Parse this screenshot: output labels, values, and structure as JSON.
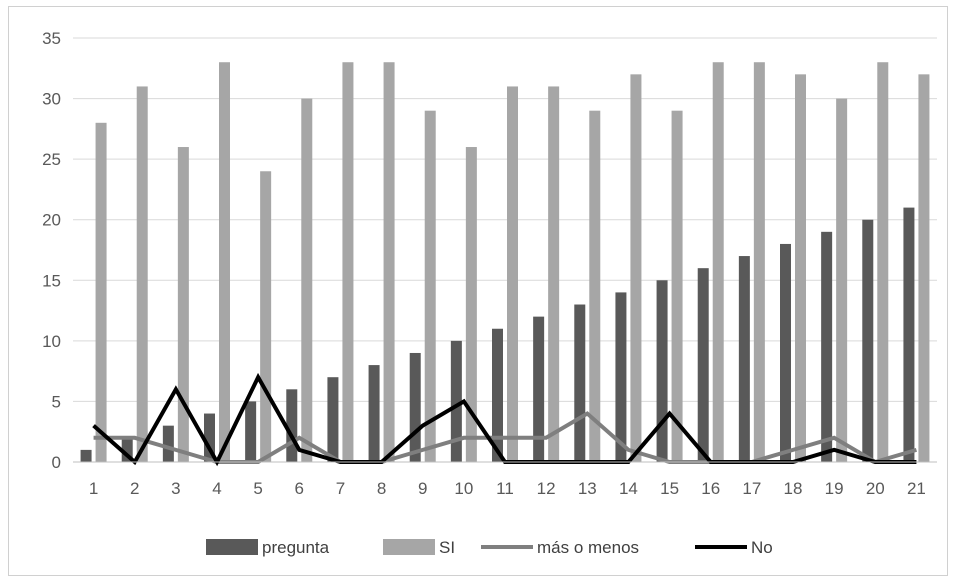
{
  "chart_data": {
    "type": "bar",
    "categories": [
      "1",
      "2",
      "3",
      "4",
      "5",
      "6",
      "7",
      "8",
      "9",
      "10",
      "11",
      "12",
      "13",
      "14",
      "15",
      "16",
      "17",
      "18",
      "19",
      "20",
      "21"
    ],
    "ylim": [
      0,
      35
    ],
    "yticks": [
      0,
      5,
      10,
      15,
      20,
      25,
      30,
      35
    ],
    "grid": true,
    "legend_position": "bottom",
    "series": [
      {
        "name": "pregunta",
        "kind": "bar",
        "color": "#595959",
        "values": [
          1,
          2,
          3,
          4,
          5,
          6,
          7,
          8,
          9,
          10,
          11,
          12,
          13,
          14,
          15,
          16,
          17,
          18,
          19,
          20,
          21
        ]
      },
      {
        "name": "SI",
        "kind": "bar",
        "color": "#a6a6a6",
        "values": [
          28,
          31,
          26,
          33,
          24,
          30,
          33,
          33,
          29,
          26,
          31,
          31,
          29,
          32,
          29,
          33,
          33,
          32,
          30,
          33,
          32
        ]
      },
      {
        "name": "más o menos",
        "kind": "line",
        "color": "#7f7f7f",
        "values": [
          2,
          2,
          1,
          0,
          0,
          2,
          0,
          0,
          1,
          2,
          2,
          2,
          4,
          1,
          0,
          0,
          0,
          1,
          2,
          0,
          1
        ]
      },
      {
        "name": "No",
        "kind": "line",
        "color": "#000000",
        "values": [
          3,
          0,
          6,
          0,
          7,
          1,
          0,
          0,
          3,
          5,
          0,
          0,
          0,
          0,
          4,
          0,
          0,
          0,
          1,
          0,
          0
        ]
      }
    ]
  }
}
